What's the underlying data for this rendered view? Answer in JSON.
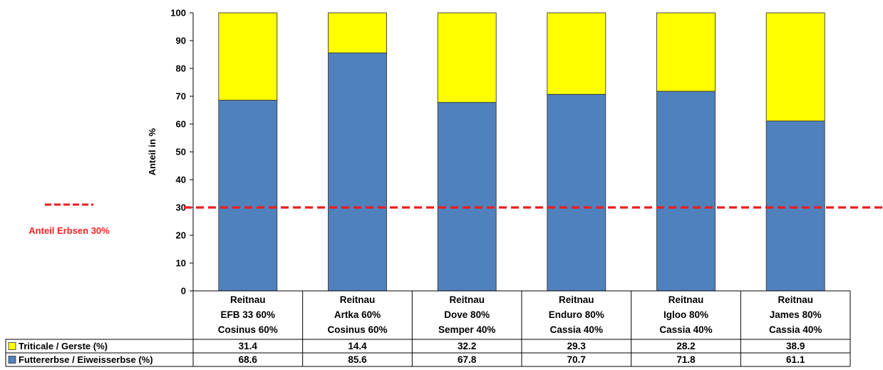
{
  "chart_data": {
    "type": "bar",
    "stacked": true,
    "ylabel": "Anteil in %",
    "ylim": [
      0,
      100
    ],
    "yticks": [
      0,
      10,
      20,
      30,
      40,
      50,
      60,
      70,
      80,
      90,
      100
    ],
    "grid": false,
    "categories": [
      [
        "Reitnau",
        "EFB 33 60%",
        "Cosinus 60%"
      ],
      [
        "Reitnau",
        "Artka 60%",
        "Cosinus 60%"
      ],
      [
        "Reitnau",
        "Dove 80%",
        "Semper 40%"
      ],
      [
        "Reitnau",
        "Enduro 80%",
        "Cassia 40%"
      ],
      [
        "Reitnau",
        "Igloo 80%",
        "Cassia 40%"
      ],
      [
        "Reitnau",
        "James 80%",
        "Cassia 40%"
      ]
    ],
    "series": [
      {
        "name": "Futtererbse / Eiweisserbse (%)",
        "color": "#4f81bd",
        "values": [
          68.6,
          85.6,
          67.8,
          70.7,
          71.8,
          61.1
        ],
        "labels": [
          "68.6",
          "85.6",
          "67.8",
          "70.7",
          "71.8",
          "61.1"
        ]
      },
      {
        "name": "Triticale / Gerste (%)",
        "color": "#ffff00",
        "values": [
          31.4,
          14.4,
          32.2,
          29.3,
          28.2,
          38.9
        ],
        "labels": [
          "31.4",
          "14.4",
          "32.2",
          "29.3",
          "28.2",
          "38.9"
        ]
      }
    ],
    "reference_line": {
      "value": 30,
      "color": "#ee1c1c",
      "style": "dashed",
      "label": "Anteil Erbsen 30%"
    },
    "legend": "data-table"
  }
}
